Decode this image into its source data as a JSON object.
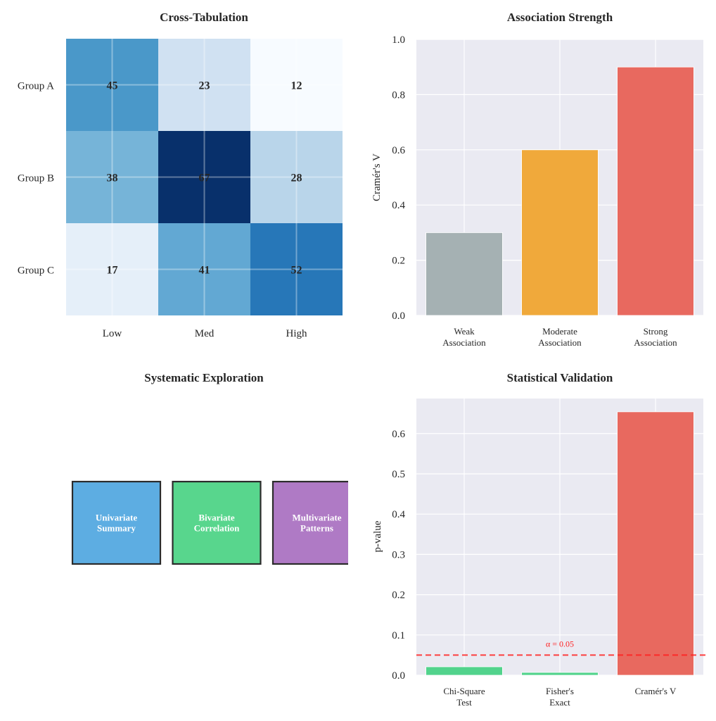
{
  "chart_data": [
    {
      "type": "heatmap",
      "title": "Cross-Tabulation",
      "rows": [
        "Group A",
        "Group B",
        "Group C"
      ],
      "columns": [
        "Low",
        "Med",
        "High"
      ],
      "values": [
        [
          45,
          23,
          12
        ],
        [
          38,
          67,
          28
        ],
        [
          17,
          41,
          52
        ]
      ],
      "colormap": "Blues",
      "grid": true
    },
    {
      "type": "bar",
      "title": "Association Strength",
      "categories": [
        "Weak\nAssociation",
        "Moderate\nAssociation",
        "Strong\nAssociation"
      ],
      "values": [
        0.3,
        0.6,
        0.9
      ],
      "colors": [
        "#a5b1b3",
        "#f0a93b",
        "#e8695f"
      ],
      "xlabel": "",
      "ylabel": "Cramér's V",
      "ylim": [
        0,
        1.0
      ],
      "yticks": [
        "0.0",
        "0.2",
        "0.4",
        "0.6",
        "0.8",
        "1.0"
      ],
      "grid": true
    },
    {
      "type": "diagram",
      "title": "Systematic Exploration",
      "boxes": [
        {
          "label": "Univariate\nSummary",
          "color": "#5dade2"
        },
        {
          "label": "Bivariate\nCorrelation",
          "color": "#58d68d"
        },
        {
          "label": "Multivariate\nPatterns",
          "color": "#af7ac5"
        }
      ]
    },
    {
      "type": "bar",
      "title": "Statistical Validation",
      "categories": [
        "Chi-Square\nTest",
        "Fisher's\nExact",
        "Cramér's V"
      ],
      "values": [
        0.021,
        0.007,
        0.654
      ],
      "colors": [
        "#52d38c",
        "#52d38c",
        "#e8695f"
      ],
      "xlabel": "",
      "ylabel": "p-value",
      "ylim": [
        0,
        0.687
      ],
      "yticks": [
        "0.0",
        "0.1",
        "0.2",
        "0.3",
        "0.4",
        "0.5",
        "0.6"
      ],
      "reference_line": {
        "value": 0.05,
        "label": "α = 0.05",
        "color": "#ff2020",
        "style": "dashed"
      },
      "grid": true
    }
  ]
}
